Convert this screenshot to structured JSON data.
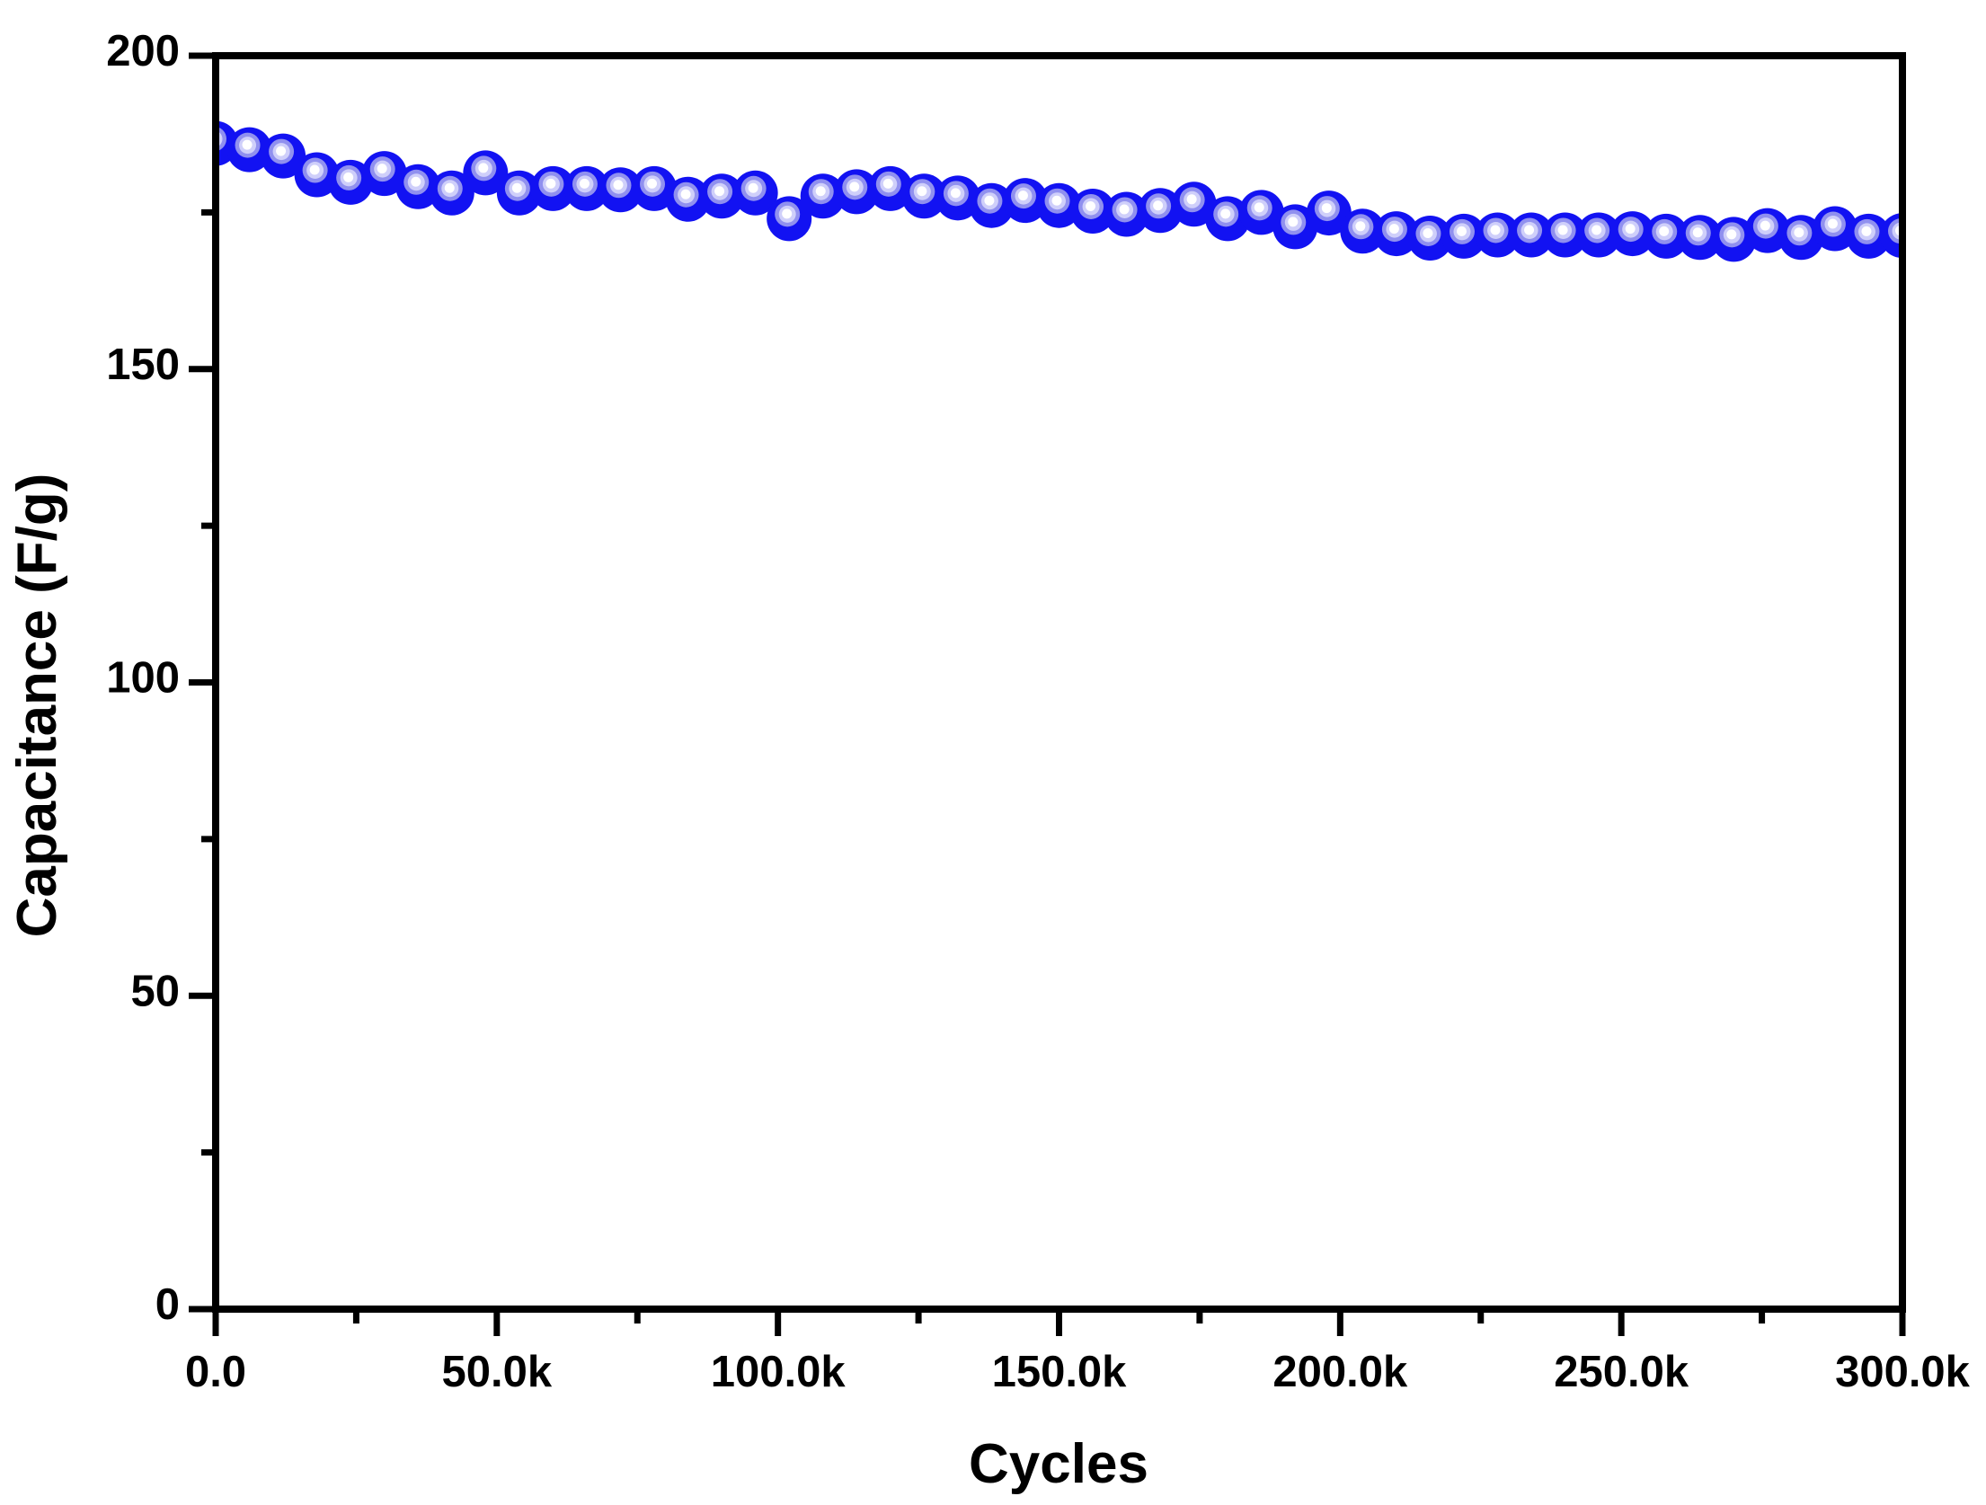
{
  "figure": {
    "background": "#ffffff",
    "title": ""
  },
  "chart_data": {
    "type": "scatter",
    "title": "",
    "xlabel": "Cycles",
    "ylabel": "Capacitance (F/g)",
    "xlim": [
      0,
      300000
    ],
    "ylim": [
      0,
      200
    ],
    "grid": false,
    "legend": null,
    "x_major_ticks": [
      0,
      50000,
      100000,
      150000,
      200000,
      250000,
      300000
    ],
    "x_tick_labels": [
      "0.0",
      "50.0k",
      "100.0k",
      "150.0k",
      "200.0k",
      "250.0k",
      "300.0k"
    ],
    "x_minor_ticks": [
      25000,
      75000,
      125000,
      175000,
      225000,
      275000
    ],
    "y_major_ticks": [
      0,
      50,
      100,
      150,
      200
    ],
    "y_tick_labels": [
      "0",
      "50",
      "100",
      "150",
      "200"
    ],
    "y_minor_ticks": [
      25,
      75,
      125,
      175
    ],
    "series": [
      {
        "name": "capacitance-vs-cycles",
        "marker": "glossy-sphere",
        "x": [
          0,
          6000,
          12000,
          18000,
          24000,
          30000,
          36000,
          42000,
          48000,
          54000,
          60000,
          66000,
          72000,
          78000,
          84000,
          90000,
          96000,
          102000,
          108000,
          114000,
          120000,
          126000,
          132000,
          138000,
          144000,
          150000,
          156000,
          162000,
          168000,
          174000,
          180000,
          186000,
          192000,
          198000,
          204000,
          210000,
          216000,
          222000,
          228000,
          234000,
          240000,
          246000,
          252000,
          258000,
          264000,
          270000,
          276000,
          282000,
          288000,
          294000,
          300000
        ],
        "y": [
          186.0,
          185.0,
          184.0,
          181.0,
          179.8,
          181.2,
          179.1,
          178.1,
          181.3,
          178.1,
          178.8,
          178.8,
          178.6,
          178.8,
          177.1,
          177.6,
          178.1,
          174.0,
          177.6,
          178.3,
          178.8,
          177.6,
          177.3,
          176.1,
          176.9,
          176.1,
          175.2,
          174.7,
          175.3,
          176.3,
          174.0,
          175.0,
          172.7,
          174.9,
          172.0,
          171.6,
          170.9,
          171.2,
          171.4,
          171.4,
          171.4,
          171.4,
          171.6,
          171.2,
          171.0,
          170.7,
          172.1,
          171.0,
          172.4,
          171.2,
          171.3
        ]
      }
    ]
  },
  "colors": {
    "axis": "#000000",
    "background": "#ffffff",
    "marker_body": "#1212f2",
    "marker_ring_mid": "#9090ef",
    "marker_ring_light": "#cfcffa",
    "marker_highlight": "#ffffff"
  }
}
